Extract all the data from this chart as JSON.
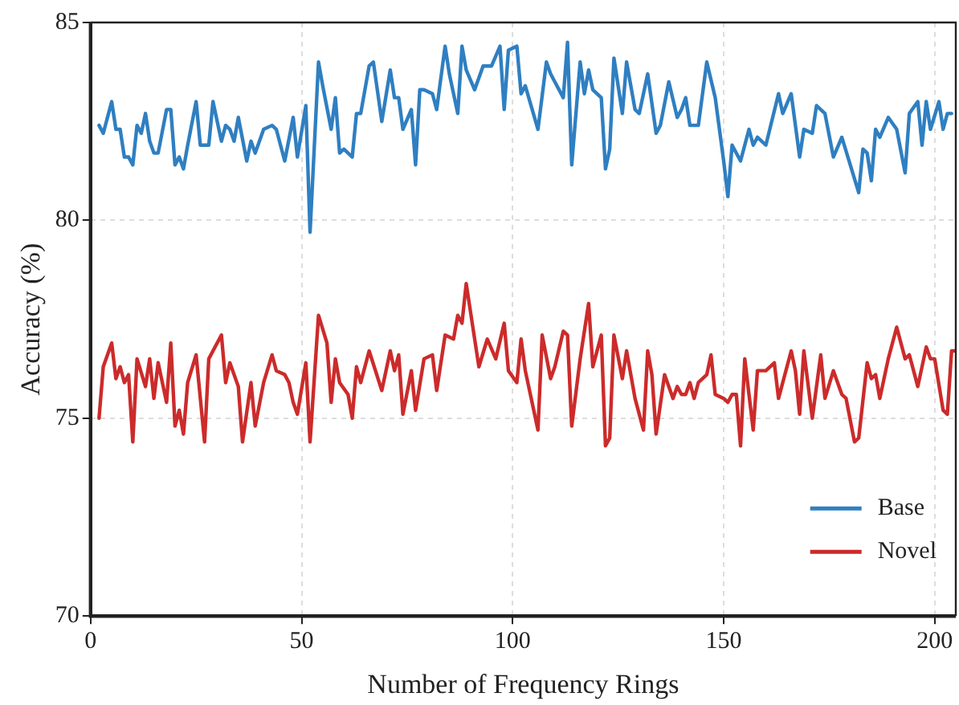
{
  "chart_data": {
    "type": "line",
    "xlabel": "Number of Frequency Rings",
    "ylabel": "Accuracy (%)",
    "xlim": [
      0,
      205
    ],
    "xticks": [
      0,
      50,
      100,
      150,
      200
    ],
    "ylim": [
      70,
      85
    ],
    "yticks": [
      70,
      75,
      80,
      85
    ],
    "grid": true,
    "legend": "bottom right",
    "marker": "none",
    "line_style": "solid",
    "series": [
      {
        "name": "Base",
        "color": "#2f7fc1",
        "x": [
          2,
          3,
          5,
          6,
          7,
          8,
          9,
          10,
          11,
          12,
          13,
          14,
          15,
          16,
          18,
          19,
          20,
          21,
          22,
          23,
          25,
          26,
          28,
          29,
          31,
          32,
          33,
          34,
          35,
          37,
          38,
          39,
          41,
          43,
          44,
          46,
          48,
          49,
          51,
          52,
          54,
          55,
          57,
          58,
          59,
          60,
          62,
          63,
          64,
          66,
          67,
          69,
          71,
          72,
          73,
          74,
          76,
          77,
          78,
          79,
          81,
          82,
          84,
          85,
          87,
          88,
          89,
          91,
          93,
          95,
          97,
          98,
          99,
          101,
          102,
          103,
          106,
          108,
          109,
          110,
          112,
          113,
          114,
          116,
          117,
          118,
          119,
          121,
          122,
          123,
          124,
          126,
          127,
          129,
          130,
          132,
          134,
          135,
          137,
          139,
          140,
          141,
          142,
          144,
          146,
          148,
          150,
          151,
          152,
          154,
          156,
          157,
          158,
          160,
          163,
          164,
          166,
          168,
          169,
          171,
          172,
          174,
          176,
          178,
          180,
          182,
          183,
          184,
          185,
          186,
          187,
          189,
          191,
          193,
          194,
          196,
          197,
          198,
          199,
          201,
          202,
          203,
          204
        ],
        "values": [
          82.4,
          82.2,
          83.0,
          82.3,
          82.3,
          81.6,
          81.6,
          81.4,
          82.4,
          82.2,
          82.7,
          82.0,
          81.7,
          81.7,
          82.8,
          82.8,
          81.4,
          81.6,
          81.3,
          81.9,
          83.0,
          81.9,
          81.9,
          83.0,
          82.0,
          82.4,
          82.3,
          82.0,
          82.6,
          81.5,
          82.0,
          81.7,
          82.3,
          82.4,
          82.3,
          81.5,
          82.6,
          81.6,
          82.9,
          79.7,
          84.0,
          83.4,
          82.3,
          83.1,
          81.7,
          81.8,
          81.6,
          82.7,
          82.7,
          83.9,
          84.0,
          82.5,
          83.8,
          83.1,
          83.1,
          82.3,
          82.8,
          81.4,
          83.3,
          83.3,
          83.2,
          82.8,
          84.4,
          83.7,
          82.7,
          84.4,
          83.8,
          83.3,
          83.9,
          83.9,
          84.4,
          82.8,
          84.3,
          84.4,
          83.2,
          83.4,
          82.3,
          84.0,
          83.7,
          83.5,
          83.1,
          84.5,
          81.4,
          84.0,
          83.2,
          83.8,
          83.3,
          83.1,
          81.3,
          81.8,
          84.1,
          82.7,
          84.0,
          82.8,
          82.7,
          83.7,
          82.2,
          82.4,
          83.5,
          82.6,
          82.8,
          83.1,
          82.4,
          82.4,
          84.0,
          83.1,
          81.5,
          80.6,
          81.9,
          81.5,
          82.3,
          81.9,
          82.1,
          81.9,
          83.2,
          82.7,
          83.2,
          81.6,
          82.3,
          82.2,
          82.9,
          82.7,
          81.6,
          82.1,
          81.4,
          80.7,
          81.8,
          81.7,
          81.0,
          82.3,
          82.1,
          82.6,
          82.3,
          81.2,
          82.7,
          83.0,
          81.9,
          83.0,
          82.3,
          83.0,
          82.3,
          82.7,
          82.7
        ]
      },
      {
        "name": "Novel",
        "color": "#cc2b2b",
        "x": [
          2,
          3,
          5,
          6,
          7,
          8,
          9,
          10,
          11,
          13,
          14,
          15,
          16,
          18,
          19,
          20,
          21,
          22,
          23,
          25,
          27,
          28,
          31,
          32,
          33,
          35,
          36,
          38,
          39,
          41,
          43,
          44,
          46,
          47,
          48,
          49,
          51,
          52,
          54,
          56,
          57,
          58,
          59,
          61,
          62,
          63,
          64,
          66,
          69,
          71,
          72,
          73,
          74,
          76,
          77,
          79,
          81,
          82,
          84,
          86,
          87,
          88,
          89,
          91,
          92,
          94,
          96,
          98,
          99,
          101,
          102,
          103,
          106,
          107,
          109,
          110,
          112,
          113,
          114,
          116,
          118,
          119,
          121,
          122,
          123,
          124,
          126,
          127,
          129,
          131,
          132,
          133,
          134,
          136,
          138,
          139,
          140,
          141,
          142,
          143,
          144,
          146,
          147,
          148,
          150,
          151,
          152,
          153,
          154,
          155,
          157,
          158,
          160,
          162,
          163,
          166,
          167,
          168,
          169,
          171,
          173,
          174,
          176,
          178,
          179,
          181,
          182,
          184,
          185,
          186,
          187,
          189,
          191,
          193,
          194,
          196,
          198,
          199,
          200,
          202,
          203,
          204,
          205
        ],
        "values": [
          75.0,
          76.3,
          76.9,
          76.0,
          76.3,
          75.9,
          76.1,
          74.4,
          76.5,
          75.8,
          76.5,
          75.5,
          76.4,
          75.4,
          76.9,
          74.8,
          75.2,
          74.6,
          75.9,
          76.6,
          74.4,
          76.5,
          77.1,
          75.9,
          76.4,
          75.8,
          74.4,
          75.9,
          74.8,
          75.9,
          76.6,
          76.2,
          76.1,
          75.9,
          75.4,
          75.1,
          76.4,
          74.4,
          77.6,
          76.9,
          75.4,
          76.5,
          75.9,
          75.6,
          75.0,
          76.3,
          75.9,
          76.7,
          75.7,
          76.7,
          76.2,
          76.6,
          75.1,
          76.2,
          75.2,
          76.5,
          76.6,
          75.7,
          77.1,
          77.0,
          77.6,
          77.4,
          78.4,
          77.0,
          76.3,
          77.0,
          76.5,
          77.4,
          76.2,
          75.9,
          77.0,
          76.2,
          74.7,
          77.1,
          76.0,
          76.3,
          77.2,
          77.1,
          74.8,
          76.5,
          77.9,
          76.3,
          77.1,
          74.3,
          74.5,
          77.1,
          76.0,
          76.7,
          75.5,
          74.7,
          76.7,
          76.1,
          74.6,
          76.1,
          75.5,
          75.8,
          75.6,
          75.6,
          75.9,
          75.5,
          75.9,
          76.1,
          76.6,
          75.6,
          75.5,
          75.4,
          75.6,
          75.6,
          74.3,
          76.5,
          74.7,
          76.2,
          76.2,
          76.4,
          75.5,
          76.7,
          76.2,
          75.1,
          76.7,
          75.0,
          76.6,
          75.5,
          76.2,
          75.6,
          75.5,
          74.4,
          74.5,
          76.4,
          76.0,
          76.1,
          75.5,
          76.5,
          77.3,
          76.5,
          76.6,
          75.8,
          76.8,
          76.5,
          76.5,
          75.2,
          75.1,
          76.7,
          76.7
        ]
      }
    ]
  }
}
